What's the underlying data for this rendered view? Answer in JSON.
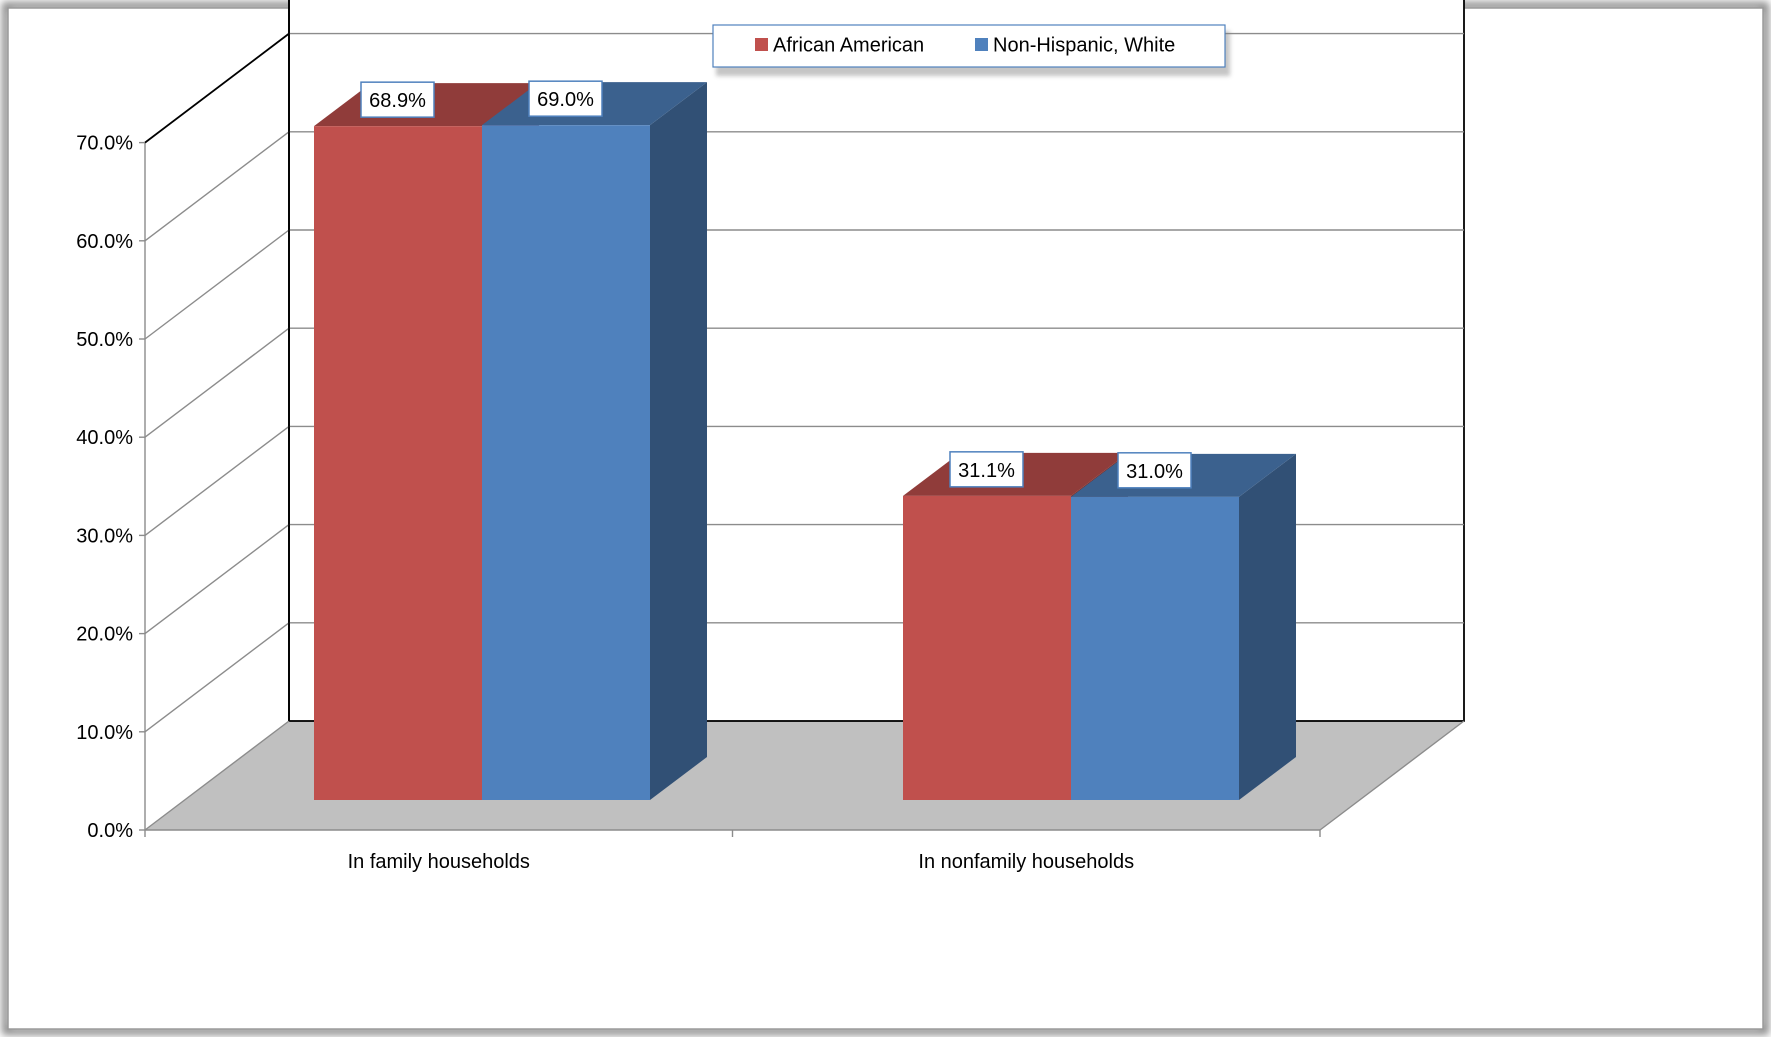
{
  "chart_data": {
    "type": "bar",
    "style": "3d-clustered-column",
    "title": "",
    "xlabel": "",
    "ylabel": "",
    "categories": [
      "In family households",
      "In nonfamily households"
    ],
    "series": [
      {
        "name": "African American",
        "values": [
          68.9,
          31.1
        ],
        "color": "#C0504D"
      },
      {
        "name": "Non-Hispanic, White",
        "values": [
          69.0,
          31.0
        ],
        "color": "#4F81BD"
      }
    ],
    "data_labels": [
      [
        "68.9%",
        "31.1%"
      ],
      [
        "69.0%",
        "31.0%"
      ]
    ],
    "yticks": [
      "0.0%",
      "10.0%",
      "20.0%",
      "30.0%",
      "40.0%",
      "50.0%",
      "60.0%",
      "70.0%"
    ],
    "ylim": [
      0,
      70
    ],
    "grid": true,
    "legend_position": "top"
  }
}
